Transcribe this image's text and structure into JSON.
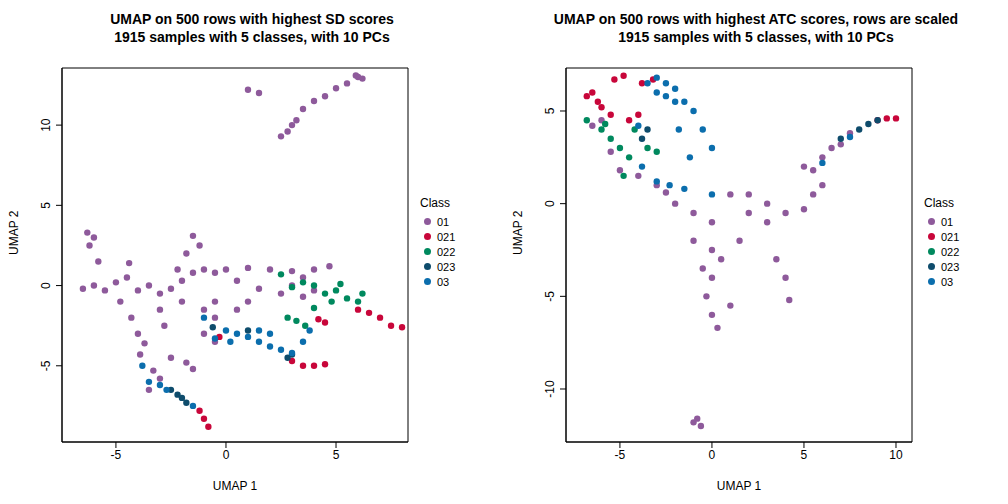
{
  "chart_data": [
    {
      "type": "scatter",
      "title": "UMAP on 500 rows with highest SD scores",
      "subtitle": "1915 samples with 5 classes, with 10 PCs",
      "x_label": "UMAP 1",
      "y_label": "UMAP 2",
      "legend_title": "Class",
      "xlim": [
        -7.45,
        8.27
      ],
      "ylim": [
        -9.75,
        13.56
      ],
      "xticks": [
        -5,
        0,
        5
      ],
      "yticks": [
        -5,
        0,
        5,
        10
      ],
      "series": [
        {
          "name": "01",
          "color": "#8E5A9B",
          "x": [
            1,
            1.5,
            2.5,
            3,
            3.5,
            4,
            4.5,
            5,
            5.5,
            6,
            6.2,
            5.9,
            3.2,
            2.8,
            -6.3,
            -6,
            -6.2,
            -5.8,
            -6.5,
            -6,
            -5.5,
            -5,
            -4.5,
            -4,
            -3.5,
            -3,
            -2.5,
            -2,
            -1.5,
            -1,
            -0.5,
            -1.2,
            -1.5,
            -1.8,
            -4.8,
            -4.3,
            -4,
            -3.7,
            -3.9,
            -3.3,
            -3,
            -2.5,
            -1.8,
            -1.5,
            -2.8,
            -3,
            -2,
            -1,
            -0.5,
            -2.2,
            -4.4,
            -3.5,
            0,
            1,
            2,
            3,
            3.5,
            4,
            4.7,
            0.5,
            1.5,
            2.5,
            3,
            3.5,
            4,
            1,
            0.5,
            -0.5,
            -1,
            -0.5
          ],
          "y": [
            12.2,
            12,
            9.3,
            10,
            11,
            11.5,
            11.8,
            12.3,
            12.6,
            13,
            12.9,
            13.1,
            10.3,
            9.6,
            3.3,
            3,
            2.5,
            1.5,
            -0.2,
            0,
            -0.3,
            0.2,
            0.5,
            -0.3,
            0,
            -0.5,
            -0.2,
            0.3,
            0.8,
            1,
            0.8,
            2.5,
            3.1,
            2,
            -1,
            -2,
            -3,
            -3.6,
            -4.3,
            -5.3,
            -5.8,
            -4.5,
            -4.8,
            -5.2,
            -2.5,
            -1.5,
            -1,
            -1.5,
            -2,
            1,
            1.4,
            -6.5,
            1,
            1.1,
            1,
            0.9,
            0.5,
            1,
            1.2,
            0.3,
            -0.2,
            -0.5,
            0,
            -0.7,
            -0.3,
            -1,
            -1.5,
            -1,
            -3,
            -3.5
          ]
        },
        {
          "name": "021",
          "color": "#C8063A",
          "x": [
            6.5,
            7,
            7.5,
            8,
            6,
            3.5,
            4,
            4.5,
            3,
            -1,
            -0.8,
            -1.2,
            4.5,
            4.2,
            -0.3
          ],
          "y": [
            -1.7,
            -2,
            -2.5,
            -2.6,
            -1.5,
            -5,
            -5,
            -4.9,
            -4.7,
            -8.3,
            -8.8,
            -7.8,
            -2.3,
            -2.1,
            -3.2
          ]
        },
        {
          "name": "022",
          "color": "#00895E",
          "x": [
            3,
            3.5,
            4,
            4.5,
            5,
            5.5,
            6,
            6.2,
            5.2,
            4.8,
            3.2,
            3.6,
            2.5,
            2.8,
            4
          ],
          "y": [
            -0.1,
            0.2,
            0,
            -0.5,
            -0.3,
            -0.8,
            -1,
            -0.5,
            0.1,
            -1,
            -2.2,
            -2.5,
            0.7,
            -2,
            -1.4
          ]
        },
        {
          "name": "023",
          "color": "#0E4C6C",
          "x": [
            -2.2,
            -2,
            -1.8,
            -2.5,
            2.8,
            3,
            1,
            -0.6
          ],
          "y": [
            -6.8,
            -7,
            -7.3,
            -6.5,
            -4.5,
            -4.3,
            -2.8,
            -2.6
          ]
        },
        {
          "name": "03",
          "color": "#0B6EAD",
          "x": [
            0,
            0.5,
            1,
            1.5,
            2,
            2.5,
            3,
            3.5,
            2,
            1.5,
            0.2,
            -1,
            -3.5,
            -3,
            -2.7,
            -1.5,
            -3.8,
            3.8,
            -0.5
          ],
          "y": [
            -2.8,
            -3,
            -3.2,
            -3.5,
            -3.8,
            -4,
            -4.2,
            -3.5,
            -3,
            -2.8,
            -3.5,
            -2,
            -6,
            -6.2,
            -6.5,
            -7.5,
            -5,
            -2.8,
            -3.3
          ]
        }
      ]
    },
    {
      "type": "scatter",
      "title": "UMAP on 500 rows with highest ATC scores, rows are scaled",
      "subtitle": "1915 samples with 5 classes, with 10 PCs",
      "x_label": "UMAP 1",
      "y_label": "UMAP 2",
      "legend_title": "Class",
      "xlim": [
        -7.93,
        10.87
      ],
      "ylim": [
        -12.86,
        7.32
      ],
      "xticks": [
        -5,
        0,
        5,
        10
      ],
      "yticks": [
        -10,
        -5,
        0,
        5
      ],
      "series": [
        {
          "name": "01",
          "color": "#8E5A9B",
          "x": [
            -1,
            -0.8,
            -0.6,
            -3,
            -4,
            -2,
            -1,
            0,
            0,
            0.5,
            0,
            -0.3,
            0,
            0.3,
            1,
            1.5,
            1,
            2,
            3,
            4,
            3.5,
            4,
            4.2,
            5,
            5.5,
            6,
            6.5,
            7,
            7.5,
            6,
            5.5,
            5,
            3,
            -1,
            -0.5,
            -5.5,
            -5,
            2,
            -2.5,
            -6,
            -6.5
          ],
          "y": [
            -11.8,
            -11.6,
            -12,
            1,
            1.5,
            0,
            -0.5,
            -1,
            -2.5,
            -3,
            -4,
            -5,
            -6,
            -6.7,
            -5.5,
            -2,
            0.5,
            -0.5,
            0,
            -0.5,
            -3,
            -4,
            -5.2,
            2,
            1.8,
            2.5,
            3,
            3.2,
            3.8,
            1,
            0.5,
            -0.3,
            -1,
            -2,
            -3.5,
            2.8,
            1.8,
            0.5,
            0.6,
            4.5,
            4.2
          ]
        },
        {
          "name": "021",
          "color": "#C8063A",
          "x": [
            -6.5,
            -6.2,
            -6,
            -5.5,
            -6.8,
            -4,
            -3.2,
            -3.8,
            -4.5,
            9,
            9.5,
            10,
            -5.3,
            -4.8
          ],
          "y": [
            6,
            5.5,
            5.2,
            4.8,
            5.8,
            4.8,
            6.7,
            6.5,
            4.5,
            4.5,
            4.6,
            4.6,
            6.7,
            6.9
          ]
        },
        {
          "name": "022",
          "color": "#00895E",
          "x": [
            -6.8,
            -6,
            -5.5,
            -5,
            -4.5,
            -4.8,
            -4.2,
            -3.5,
            -3,
            -5.8
          ],
          "y": [
            4.5,
            4,
            3.5,
            3,
            2.5,
            1.5,
            4,
            3,
            2.8,
            4.3
          ]
        },
        {
          "name": "023",
          "color": "#0E4C6C",
          "x": [
            7,
            8,
            8.5,
            9,
            -3.8,
            -3.5
          ],
          "y": [
            3.5,
            4,
            4.3,
            4.5,
            3.5,
            4
          ]
        },
        {
          "name": "03",
          "color": "#0B6EAD",
          "x": [
            -3.5,
            -3,
            -2.5,
            -2,
            -1.5,
            -1,
            -0.5,
            0,
            -2,
            -2.5,
            -3,
            -4,
            -3.8,
            -3,
            -2.3,
            -1.5,
            0,
            6,
            7.5,
            -1.2,
            -1.8
          ],
          "y": [
            6.5,
            6.8,
            6.5,
            6.2,
            5.5,
            5,
            4,
            3,
            5.5,
            5.8,
            6,
            4.2,
            2,
            1.2,
            1,
            0.8,
            0.5,
            2.2,
            3.6,
            2.5,
            4
          ]
        }
      ]
    }
  ]
}
